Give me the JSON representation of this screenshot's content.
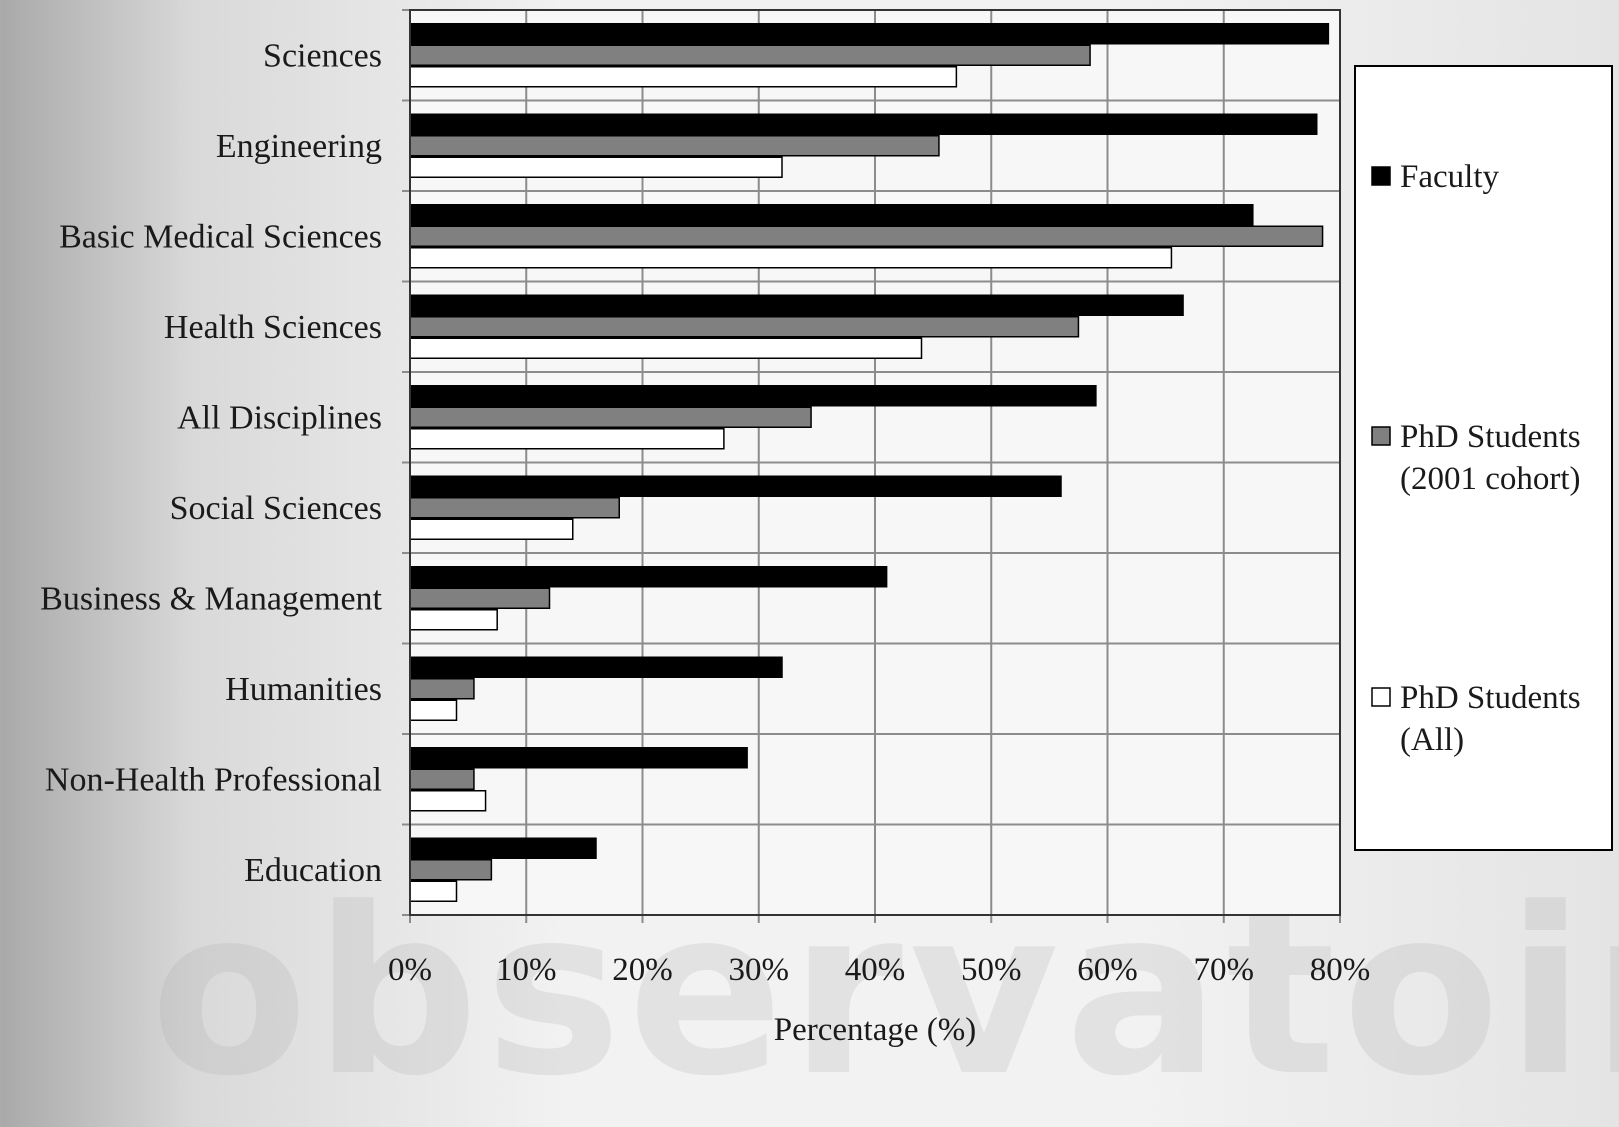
{
  "chart_data": {
    "type": "bar",
    "orientation": "horizontal",
    "categories": [
      "Sciences",
      "Engineering",
      "Basic Medical Sciences",
      "Health Sciences",
      "All Disciplines",
      "Social Sciences",
      "Business & Management",
      "Humanities",
      "Non-Health Professional",
      "Education"
    ],
    "series": [
      {
        "name": "Faculty",
        "color": "#000000",
        "values": [
          79,
          78,
          72.5,
          66.5,
          59,
          56,
          41,
          32,
          29,
          16
        ]
      },
      {
        "name": "PhD Students (2001 cohort)",
        "name_lines": [
          "PhD Students",
          "(2001 cohort)"
        ],
        "color": "#808080",
        "values": [
          58.5,
          45.5,
          78.5,
          57.5,
          34.5,
          18,
          12,
          5.5,
          5.5,
          7
        ]
      },
      {
        "name": "PhD Students (All)",
        "name_lines": [
          "PhD Students",
          "(All)"
        ],
        "color": "#ffffff",
        "values": [
          47,
          32,
          65.5,
          44,
          27,
          14,
          7.5,
          4,
          6.5,
          4
        ]
      }
    ],
    "xlim": [
      0,
      80
    ],
    "xticks": [
      "0%",
      "10%",
      "20%",
      "30%",
      "40%",
      "50%",
      "60%",
      "70%",
      "80%"
    ],
    "xlabel": "Percentage (%)",
    "ylabel": "",
    "title": "",
    "grid": true,
    "legend": "right"
  }
}
